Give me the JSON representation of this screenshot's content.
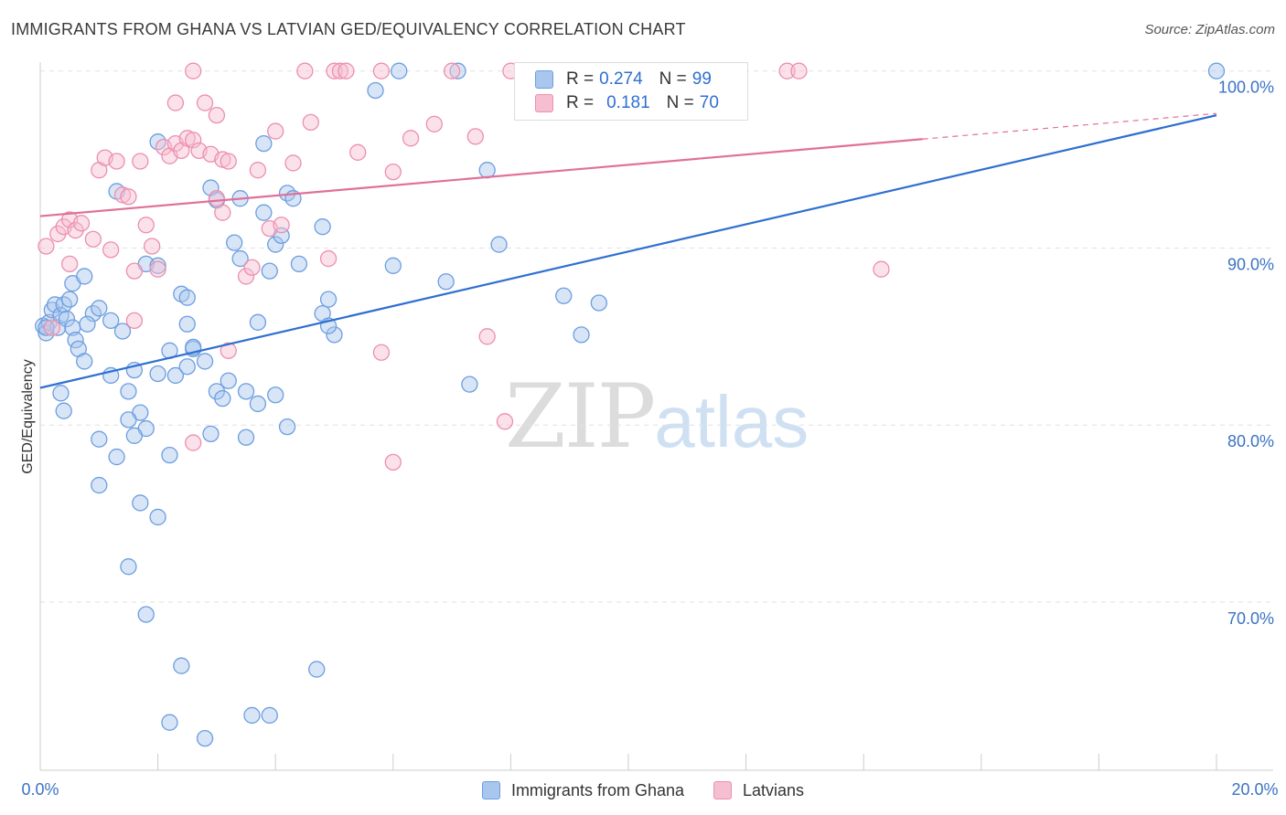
{
  "title": "IMMIGRANTS FROM GHANA VS LATVIAN GED/EQUIVALENCY CORRELATION CHART",
  "source": "Source: ZipAtlas.com",
  "watermark": {
    "zip": "ZIP",
    "atlas": "atlas"
  },
  "legend_top": [
    {
      "r_label": "R =",
      "r_value": "0.274",
      "n_label": "N =",
      "n_value": "99"
    },
    {
      "r_label": "R =",
      "r_value": "0.181",
      "n_label": "N =",
      "n_value": "70"
    }
  ],
  "chart_data": {
    "type": "scatter",
    "title": "IMMIGRANTS FROM GHANA VS LATVIAN GED/EQUIVALENCY CORRELATION CHART",
    "xlabel": "",
    "ylabel": "GED/Equivalency",
    "xlim": [
      0,
      20
    ],
    "ylim": [
      60.5,
      100.5
    ],
    "x_ticks_labeled": [
      "0.0%",
      "20.0%"
    ],
    "y_ticks": [
      70,
      80,
      90,
      100
    ],
    "y_tick_labels": [
      "70.0%",
      "80.0%",
      "90.0%",
      "100.0%"
    ],
    "grid": true,
    "legend_position": "bottom",
    "series": [
      {
        "name": "Immigrants from Ghana",
        "color": "#6c9ee0",
        "fill": "#a9c6ee",
        "R": 0.274,
        "N": 99,
        "trend": {
          "x0": 0,
          "y0": 82.1,
          "x1": 20,
          "y1": 97.5
        },
        "points": [
          [
            0.05,
            85.6
          ],
          [
            0.1,
            85.2
          ],
          [
            0.15,
            85.8
          ],
          [
            0.2,
            86.5
          ],
          [
            0.25,
            86.8
          ],
          [
            0.3,
            85.5
          ],
          [
            0.35,
            86.2
          ],
          [
            0.4,
            86.8
          ],
          [
            0.45,
            86.0
          ],
          [
            0.5,
            87.1
          ],
          [
            0.55,
            85.5
          ],
          [
            0.6,
            84.8
          ],
          [
            0.55,
            88.0
          ],
          [
            0.75,
            88.4
          ],
          [
            0.9,
            86.3
          ],
          [
            0.8,
            85.7
          ],
          [
            0.65,
            84.3
          ],
          [
            0.75,
            83.6
          ],
          [
            1.0,
            86.6
          ],
          [
            1.2,
            85.9
          ],
          [
            1.4,
            85.3
          ],
          [
            0.35,
            81.8
          ],
          [
            0.4,
            80.8
          ],
          [
            1.0,
            79.2
          ],
          [
            1.3,
            78.2
          ],
          [
            1.5,
            81.9
          ],
          [
            1.2,
            82.8
          ],
          [
            1.7,
            80.7
          ],
          [
            1.6,
            83.1
          ],
          [
            2.0,
            82.9
          ],
          [
            2.2,
            84.2
          ],
          [
            2.3,
            82.8
          ],
          [
            2.5,
            83.3
          ],
          [
            2.6,
            84.3
          ],
          [
            2.8,
            83.6
          ],
          [
            3.0,
            81.9
          ],
          [
            3.2,
            82.5
          ],
          [
            3.1,
            81.5
          ],
          [
            3.5,
            81.9
          ],
          [
            3.7,
            81.2
          ],
          [
            4.0,
            81.7
          ],
          [
            4.2,
            79.9
          ],
          [
            3.5,
            79.3
          ],
          [
            2.9,
            79.5
          ],
          [
            2.2,
            78.3
          ],
          [
            1.8,
            79.8
          ],
          [
            1.5,
            80.3
          ],
          [
            1.6,
            79.4
          ],
          [
            1.0,
            76.6
          ],
          [
            1.7,
            75.6
          ],
          [
            2.0,
            74.8
          ],
          [
            1.5,
            72.0
          ],
          [
            1.8,
            69.3
          ],
          [
            2.4,
            66.4
          ],
          [
            2.2,
            63.2
          ],
          [
            2.8,
            62.3
          ],
          [
            3.6,
            63.6
          ],
          [
            3.9,
            63.6
          ],
          [
            4.7,
            66.2
          ],
          [
            1.3,
            93.2
          ],
          [
            1.8,
            89.1
          ],
          [
            2.0,
            89.0
          ],
          [
            2.0,
            96.0
          ],
          [
            2.4,
            87.4
          ],
          [
            2.5,
            87.2
          ],
          [
            2.5,
            85.7
          ],
          [
            2.6,
            84.4
          ],
          [
            2.9,
            93.4
          ],
          [
            3.0,
            92.7
          ],
          [
            3.4,
            92.8
          ],
          [
            3.3,
            90.3
          ],
          [
            3.4,
            89.4
          ],
          [
            3.7,
            85.8
          ],
          [
            3.8,
            95.9
          ],
          [
            3.8,
            92.0
          ],
          [
            3.9,
            88.7
          ],
          [
            4.0,
            90.2
          ],
          [
            4.1,
            90.7
          ],
          [
            4.2,
            93.1
          ],
          [
            4.3,
            92.8
          ],
          [
            4.4,
            89.1
          ],
          [
            4.8,
            86.3
          ],
          [
            4.9,
            87.1
          ],
          [
            5.0,
            85.1
          ],
          [
            4.9,
            85.6
          ],
          [
            4.8,
            91.2
          ],
          [
            6.0,
            89.0
          ],
          [
            5.7,
            98.9
          ],
          [
            6.1,
            100.0
          ],
          [
            6.9,
            88.1
          ],
          [
            7.1,
            100.0
          ],
          [
            7.6,
            94.4
          ],
          [
            7.8,
            90.2
          ],
          [
            7.3,
            82.3
          ],
          [
            8.9,
            87.3
          ],
          [
            9.5,
            86.9
          ],
          [
            9.2,
            85.1
          ],
          [
            20.0,
            100.0
          ],
          [
            0.1,
            85.5
          ]
        ]
      },
      {
        "name": "Latvians",
        "color": "#ec8fae",
        "fill": "#f6bfd1",
        "R": 0.181,
        "N": 70,
        "trend": {
          "x0": 0,
          "y0": 91.8,
          "x1": 20,
          "y1": 97.6,
          "solid_until": 15
        },
        "points": [
          [
            0.1,
            90.1
          ],
          [
            0.2,
            85.5
          ],
          [
            0.3,
            90.8
          ],
          [
            0.4,
            91.2
          ],
          [
            0.5,
            91.6
          ],
          [
            0.6,
            91.0
          ],
          [
            0.7,
            91.4
          ],
          [
            0.5,
            89.1
          ],
          [
            0.9,
            90.5
          ],
          [
            1.0,
            94.4
          ],
          [
            1.1,
            95.1
          ],
          [
            1.2,
            89.9
          ],
          [
            1.3,
            94.9
          ],
          [
            1.4,
            93.0
          ],
          [
            1.5,
            92.9
          ],
          [
            1.6,
            88.7
          ],
          [
            1.7,
            94.9
          ],
          [
            1.8,
            91.3
          ],
          [
            1.9,
            90.1
          ],
          [
            2.0,
            88.8
          ],
          [
            2.1,
            95.7
          ],
          [
            2.2,
            95.2
          ],
          [
            2.3,
            95.9
          ],
          [
            2.3,
            98.2
          ],
          [
            2.4,
            95.5
          ],
          [
            2.5,
            96.2
          ],
          [
            2.6,
            96.1
          ],
          [
            2.7,
            95.5
          ],
          [
            2.8,
            98.2
          ],
          [
            2.9,
            95.3
          ],
          [
            3.0,
            92.8
          ],
          [
            3.0,
            97.5
          ],
          [
            3.1,
            92.0
          ],
          [
            3.1,
            95.0
          ],
          [
            3.2,
            94.9
          ],
          [
            3.2,
            84.2
          ],
          [
            2.6,
            79.0
          ],
          [
            3.5,
            88.4
          ],
          [
            3.6,
            88.9
          ],
          [
            3.7,
            94.4
          ],
          [
            3.9,
            91.1
          ],
          [
            4.0,
            96.6
          ],
          [
            4.1,
            91.3
          ],
          [
            4.3,
            94.8
          ],
          [
            4.6,
            97.1
          ],
          [
            4.5,
            100.0
          ],
          [
            4.9,
            89.4
          ],
          [
            5.0,
            100.0
          ],
          [
            5.1,
            100.0
          ],
          [
            5.2,
            100.0
          ],
          [
            5.4,
            95.4
          ],
          [
            5.8,
            100.0
          ],
          [
            5.8,
            84.1
          ],
          [
            6.0,
            94.3
          ],
          [
            6.0,
            77.9
          ],
          [
            6.3,
            96.2
          ],
          [
            6.7,
            97.0
          ],
          [
            7.0,
            100.0
          ],
          [
            7.4,
            96.3
          ],
          [
            7.6,
            85.0
          ],
          [
            7.9,
            80.2
          ],
          [
            8.0,
            100.0
          ],
          [
            8.9,
            100.0
          ],
          [
            9.4,
            100.0
          ],
          [
            10.0,
            100.0
          ],
          [
            12.7,
            100.0
          ],
          [
            12.9,
            100.0
          ],
          [
            14.3,
            88.8
          ],
          [
            2.6,
            100.0
          ],
          [
            1.6,
            85.9
          ]
        ]
      }
    ]
  }
}
